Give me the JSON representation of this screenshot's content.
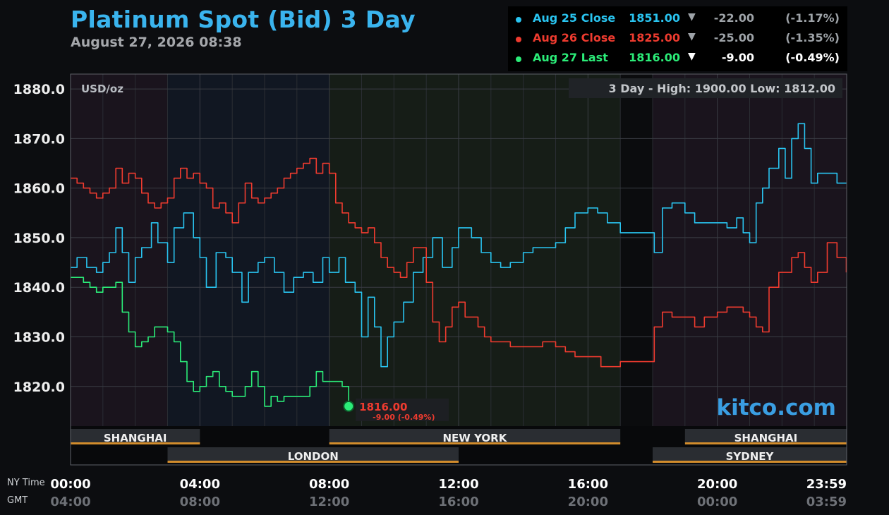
{
  "header": {
    "title": "Platinum Spot (Bid) 3 Day",
    "subtitle": "August 27, 2026 08:38"
  },
  "legend": [
    {
      "label": "Aug 25 Close",
      "value": "1851.00",
      "arrow": "▼",
      "change": "-22.00",
      "pct": "(-1.17%)",
      "color": "#29c4f0",
      "text_color": "#9ea3a8"
    },
    {
      "label": "Aug 26 Close",
      "value": "1825.00",
      "arrow": "▼",
      "change": "-25.00",
      "pct": "(-1.35%)",
      "color": "#ef3b2f",
      "text_color": "#9ea3a8"
    },
    {
      "label": "Aug 27 Last",
      "value": "1816.00",
      "arrow": "▼",
      "change": "-9.00",
      "pct": "(-0.49%)",
      "color": "#2bec78",
      "text_color": "#ffffff"
    }
  ],
  "plot": {
    "units": "USD/oz",
    "high_low": "3 Day - High: 1900.00  Low: 1812.00",
    "watermark": "kitco.com",
    "last_label": "1816.00",
    "last_change": "-9.00 (-0.49%)"
  },
  "axis": {
    "row_labels": {
      "ny": "NY Time",
      "gmt": "GMT"
    }
  },
  "sessions": [
    {
      "name": "SHANGHAI",
      "start_hour": 0,
      "end_hour": 4,
      "row": 0
    },
    {
      "name": "NEW YORK",
      "start_hour": 8,
      "end_hour": 17,
      "row": 0
    },
    {
      "name": "SHANGHAI",
      "start_hour": 19,
      "end_hour": 24,
      "row": 0
    },
    {
      "name": "LONDON",
      "start_hour": 3,
      "end_hour": 12,
      "row": 1
    },
    {
      "name": "SYDNEY",
      "start_hour": 18,
      "end_hour": 24,
      "row": 1
    }
  ],
  "chart_data": {
    "type": "line",
    "x_unit": "NY time (hours)",
    "xlim": [
      0,
      24
    ],
    "ylim": [
      1812,
      1883
    ],
    "yticks": [
      1880,
      1870,
      1860,
      1850,
      1840,
      1830,
      1820
    ],
    "y_tick_labels": [
      "1880.0",
      "1870.0",
      "1860.0",
      "1850.0",
      "1840.0",
      "1830.0",
      "1820.0"
    ],
    "x_ticks": [
      0,
      4,
      8,
      12,
      16,
      20,
      24
    ],
    "x_tick_labels": [
      "00:00",
      "04:00",
      "08:00",
      "12:00",
      "16:00",
      "20:00",
      "23:59"
    ],
    "gmt_tick_labels": [
      "04:00",
      "08:00",
      "12:00",
      "16:00",
      "20:00",
      "00:00",
      "03:59"
    ],
    "grid": true,
    "series": [
      {
        "name": "Aug 25 Close",
        "color": "#29c4f0",
        "x": [
          0,
          0.2,
          0.5,
          0.8,
          1,
          1.2,
          1.4,
          1.6,
          1.8,
          2,
          2.2,
          2.5,
          2.7,
          3,
          3.2,
          3.5,
          3.8,
          4,
          4.2,
          4.5,
          4.8,
          5,
          5.3,
          5.5,
          5.8,
          6,
          6.3,
          6.6,
          6.9,
          7.2,
          7.5,
          7.8,
          8,
          8.3,
          8.5,
          8.8,
          9,
          9.2,
          9.4,
          9.6,
          9.8,
          10,
          10.3,
          10.6,
          10.9,
          11.2,
          11.5,
          11.8,
          12,
          12.4,
          12.7,
          13,
          13.3,
          13.6,
          14,
          14.3,
          14.6,
          15,
          15.3,
          15.6,
          16,
          16.3,
          16.6,
          17,
          18,
          18.05,
          18.3,
          18.6,
          19,
          19.3,
          19.6,
          20,
          20.3,
          20.6,
          20.8,
          21,
          21.2,
          21.4,
          21.6,
          21.9,
          22.1,
          22.3,
          22.5,
          22.7,
          22.9,
          23.1,
          23.4,
          23.7,
          23.99
        ],
        "y": [
          1844,
          1846,
          1844,
          1843,
          1845,
          1847,
          1852,
          1847,
          1841,
          1846,
          1848,
          1853,
          1849,
          1845,
          1852,
          1855,
          1850,
          1846,
          1840,
          1847,
          1846,
          1843,
          1837,
          1843,
          1845,
          1846,
          1843,
          1839,
          1842,
          1843,
          1841,
          1846,
          1843,
          1846,
          1841,
          1839,
          1830,
          1838,
          1832,
          1824,
          1830,
          1833,
          1837,
          1843,
          1846,
          1850,
          1844,
          1848,
          1852,
          1850,
          1847,
          1845,
          1844,
          1845,
          1847,
          1848,
          1848,
          1849,
          1852,
          1855,
          1856,
          1855,
          1853,
          1851,
          1851,
          1847,
          1856,
          1857,
          1855,
          1853,
          1853,
          1853,
          1852,
          1854,
          1851,
          1849,
          1857,
          1860,
          1864,
          1868,
          1862,
          1870,
          1873,
          1868,
          1861,
          1863,
          1863,
          1861,
          1861
        ]
      },
      {
        "name": "Aug 26 Close",
        "color": "#ef3b2f",
        "x": [
          0,
          0.2,
          0.4,
          0.6,
          0.8,
          1,
          1.2,
          1.4,
          1.6,
          1.8,
          2,
          2.2,
          2.4,
          2.6,
          2.8,
          3,
          3.2,
          3.4,
          3.6,
          3.8,
          4,
          4.2,
          4.4,
          4.6,
          4.8,
          5,
          5.2,
          5.4,
          5.6,
          5.8,
          6,
          6.2,
          6.4,
          6.6,
          6.8,
          7,
          7.2,
          7.4,
          7.6,
          7.8,
          8,
          8.2,
          8.4,
          8.6,
          8.8,
          9,
          9.2,
          9.4,
          9.6,
          9.8,
          10,
          10.2,
          10.4,
          10.6,
          10.8,
          11,
          11.2,
          11.4,
          11.6,
          11.8,
          12,
          12.2,
          12.4,
          12.6,
          12.8,
          13,
          13.3,
          13.6,
          14,
          14.3,
          14.6,
          15,
          15.3,
          15.6,
          15.9,
          16.1,
          16.4,
          16.6,
          17,
          18,
          18.05,
          18.3,
          18.6,
          19,
          19.3,
          19.6,
          20,
          20.3,
          20.6,
          20.8,
          21,
          21.2,
          21.4,
          21.6,
          21.9,
          22.1,
          22.3,
          22.5,
          22.7,
          22.9,
          23.1,
          23.4,
          23.7,
          23.99
        ],
        "y": [
          1862,
          1861,
          1860,
          1859,
          1858,
          1859,
          1860,
          1864,
          1861,
          1863,
          1862,
          1859,
          1857,
          1856,
          1857,
          1858,
          1862,
          1864,
          1862,
          1863,
          1861,
          1860,
          1856,
          1857,
          1855,
          1853,
          1857,
          1861,
          1858,
          1857,
          1858,
          1859,
          1860,
          1862,
          1863,
          1864,
          1865,
          1866,
          1863,
          1865,
          1863,
          1857,
          1855,
          1853,
          1852,
          1851,
          1852,
          1849,
          1846,
          1844,
          1843,
          1842,
          1845,
          1848,
          1848,
          1841,
          1833,
          1829,
          1832,
          1836,
          1837,
          1834,
          1834,
          1832,
          1830,
          1829,
          1829,
          1828,
          1828,
          1828,
          1829,
          1828,
          1827,
          1826,
          1826,
          1826,
          1824,
          1824,
          1825,
          1825,
          1832,
          1835,
          1834,
          1834,
          1832,
          1834,
          1835,
          1836,
          1836,
          1835,
          1834,
          1832,
          1831,
          1840,
          1843,
          1843,
          1846,
          1847,
          1844,
          1841,
          1843,
          1849,
          1846,
          1843
        ]
      },
      {
        "name": "Aug 27 Last",
        "color": "#2bec78",
        "x": [
          0,
          0.2,
          0.4,
          0.6,
          0.8,
          1,
          1.2,
          1.4,
          1.5,
          1.6,
          1.8,
          2,
          2.2,
          2.4,
          2.6,
          2.8,
          3,
          3.2,
          3.4,
          3.6,
          3.8,
          4,
          4.2,
          4.4,
          4.6,
          4.8,
          5,
          5.2,
          5.4,
          5.6,
          5.8,
          6,
          6.2,
          6.4,
          6.6,
          6.8,
          7,
          7.2,
          7.4,
          7.6,
          7.8,
          8,
          8.2,
          8.4,
          8.6
        ],
        "y": [
          1842,
          1842,
          1841,
          1840,
          1839,
          1840,
          1840,
          1841,
          1841,
          1835,
          1831,
          1828,
          1829,
          1830,
          1832,
          1832,
          1831,
          1829,
          1825,
          1821,
          1819,
          1820,
          1822,
          1823,
          1820,
          1819,
          1818,
          1818,
          1820,
          1823,
          1820,
          1816,
          1818,
          1817,
          1818,
          1818,
          1818,
          1818,
          1820,
          1823,
          1821,
          1821,
          1821,
          1820,
          1816
        ]
      }
    ]
  }
}
